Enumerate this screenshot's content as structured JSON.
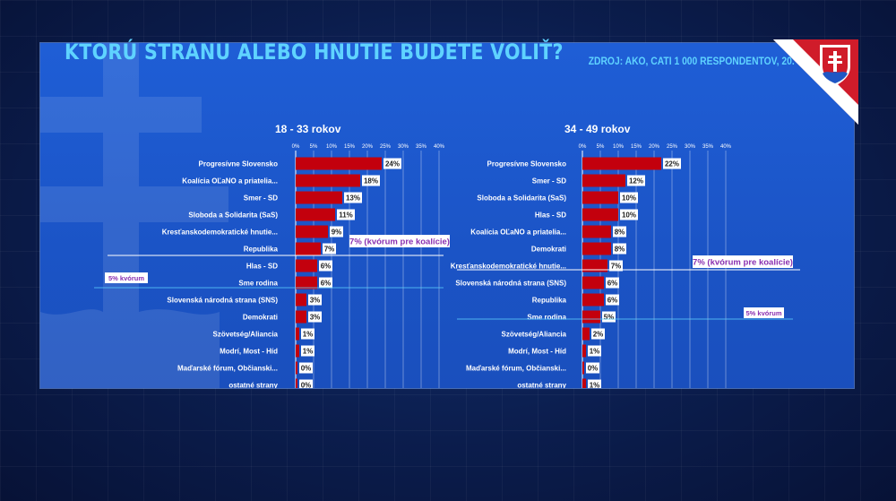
{
  "title": "KTORÚ STRANU ALEBO HNUTIE BUDETE VOLIŤ?",
  "source": "ZDROJ: AKO, CATI 1 000 RESPONDENTOV, 20. – 26. 9. 2023",
  "colors": {
    "bar": "#c3000d",
    "title": "#5fd3ff",
    "panel": "#1d58cc",
    "quorum_box_text": "#8a2fb0"
  },
  "icons": [
    "slovak-coat-of-arms-icon"
  ],
  "chart_data": [
    {
      "type": "bar",
      "orientation": "horizontal",
      "title": "18 - 33 rokov",
      "xlim": [
        0,
        40
      ],
      "x_ticks": [
        "0%",
        "5%",
        "10%",
        "15%",
        "20%",
        "25%",
        "30%",
        "35%",
        "40%"
      ],
      "categories": [
        "Progresívne Slovensko",
        "Koalícia OĽaNO a priatelia...",
        "Smer - SD",
        "Sloboda a Solidarita (SaS)",
        "Kresťanskodemokratické hnutie...",
        "Republika",
        "Hlas - SD",
        "Sme rodina",
        "Slovenská národná strana (SNS)",
        "Demokrati",
        "Szövetség/Aliancia",
        "Modrí, Most - Híd",
        "Maďarské fórum, Občianski...",
        "ostatné strany"
      ],
      "values": [
        24,
        18,
        13,
        11,
        9,
        7,
        6,
        6,
        3,
        3,
        1,
        1,
        0,
        0
      ],
      "labels": [
        "24%",
        "18%",
        "13%",
        "11%",
        "9%",
        "7%",
        "6%",
        "6%",
        "3%",
        "3%",
        "1%",
        "1%",
        "0%",
        "0%"
      ],
      "annotations": [
        {
          "text": "7% (kvórum pre koalície)",
          "after_category": "Republika"
        },
        {
          "text": "5% kvórum",
          "after_category": "Sme rodina"
        }
      ]
    },
    {
      "type": "bar",
      "orientation": "horizontal",
      "title": "34 - 49 rokov",
      "xlim": [
        0,
        40
      ],
      "x_ticks": [
        "0%",
        "5%",
        "10%",
        "15%",
        "20%",
        "25%",
        "30%",
        "35%",
        "40%"
      ],
      "categories": [
        "Progresívne Slovensko",
        "Smer - SD",
        "Sloboda a Solidarita (SaS)",
        "Hlas - SD",
        "Koalícia OĽaNO a priatelia...",
        "Demokrati",
        "Kresťanskodemokratické hnutie...",
        "Slovenská národná strana (SNS)",
        "Republika",
        "Sme rodina",
        "Szövetség/Aliancia",
        "Modrí, Most - Híd",
        "Maďarské fórum, Občianski...",
        "ostatné strany"
      ],
      "values": [
        22,
        12,
        10,
        10,
        8,
        8,
        7,
        6,
        6,
        5,
        2,
        1,
        0,
        1
      ],
      "labels": [
        "22%",
        "12%",
        "10%",
        "10%",
        "8%",
        "8%",
        "7%",
        "6%",
        "6%",
        "5%",
        "2%",
        "1%",
        "0%",
        "1%"
      ],
      "annotations": [
        {
          "text": "7% (kvórum pre koalície)",
          "after_category": "Kresťanskodemokratické hnutie..."
        },
        {
          "text": "5% kvórum",
          "after_category": "Sme rodina"
        }
      ]
    }
  ]
}
